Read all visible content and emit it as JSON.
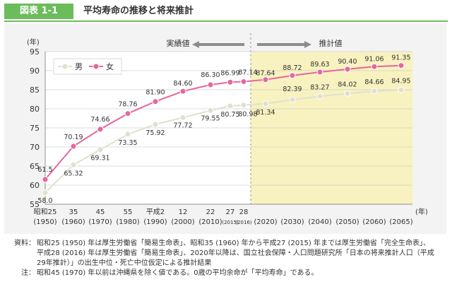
{
  "figure": {
    "badge": "図表 1-1",
    "title": "平均寿命の推移と将来推計"
  },
  "chart_data": {
    "type": "line",
    "y_unit": "(年)",
    "x_unit": "(年)",
    "ylim": [
      55,
      95
    ],
    "yticks": [
      55,
      60,
      65,
      70,
      75,
      80,
      85,
      90,
      95
    ],
    "grid": true,
    "legend_position": "top-left",
    "categories": [
      "昭和25 (1950)",
      "35 (1960)",
      "45 (1970)",
      "55 (1980)",
      "平成2 (1990)",
      "12 (2000)",
      "22 (2010)",
      "27 (2015)",
      "28 (2016)",
      "(2020)",
      "(2030)",
      "(2040)",
      "(2050)",
      "(2060)",
      "(2065)"
    ],
    "x": [
      1950,
      1960,
      1970,
      1980,
      1990,
      2000,
      2010,
      2015,
      2016,
      2020,
      2030,
      2040,
      2050,
      2060,
      2065
    ],
    "tick_labels": [
      {
        "x": 1950,
        "top": "昭和25",
        "bottom": "(1950)"
      },
      {
        "x": 1960,
        "top": "35",
        "bottom": "(1960)"
      },
      {
        "x": 1970,
        "top": "45",
        "bottom": "(1970)"
      },
      {
        "x": 1980,
        "top": "55",
        "bottom": "(1980)"
      },
      {
        "x": 1990,
        "top": "平成2",
        "bottom": "(1990)"
      },
      {
        "x": 2000,
        "top": "12",
        "bottom": "(2000)"
      },
      {
        "x": 2010,
        "top": "22",
        "bottom": "(2010)"
      },
      {
        "x": 2015,
        "top": "27",
        "bottom": "(2015)",
        "small": true
      },
      {
        "x": 2016,
        "top": "28",
        "bottom": "(2016)",
        "small": true
      },
      {
        "x": 2020,
        "top": "",
        "bottom": "(2020)"
      },
      {
        "x": 2030,
        "top": "",
        "bottom": "(2030)"
      },
      {
        "x": 2040,
        "top": "",
        "bottom": "(2040)"
      },
      {
        "x": 2050,
        "top": "",
        "bottom": "(2050)"
      },
      {
        "x": 2060,
        "top": "",
        "bottom": "(2060)"
      },
      {
        "x": 2065,
        "top": "",
        "bottom": "(2065)"
      }
    ],
    "series": [
      {
        "name": "男",
        "color": "#e0e0d0",
        "values": [
          58.0,
          65.32,
          69.31,
          73.35,
          75.92,
          77.72,
          79.55,
          80.75,
          80.98,
          81.34,
          82.39,
          83.27,
          84.02,
          84.66,
          84.95
        ],
        "labels": [
          "58.0",
          "65.32",
          "69.31",
          "73.35",
          "75.92",
          "77.72",
          "79.55",
          "80.75",
          "80.98",
          "81.34",
          "82.39",
          "83.27",
          "84.02",
          "84.66",
          "84.95"
        ]
      },
      {
        "name": "女",
        "color": "#e5679e",
        "values": [
          61.5,
          70.19,
          74.66,
          78.76,
          81.9,
          84.6,
          86.3,
          86.99,
          87.14,
          87.64,
          88.72,
          89.63,
          90.4,
          91.06,
          91.35
        ],
        "labels": [
          "61.5",
          "70.19",
          "74.66",
          "78.76",
          "81.90",
          "84.60",
          "86.30",
          "86.99",
          "87.14",
          "87.64",
          "88.72",
          "89.63",
          "90.40",
          "91.06",
          "91.35"
        ]
      }
    ],
    "projection_shading_color": "#f8f2c0",
    "actual_label": "実績値",
    "projection_label": "推計値"
  },
  "notes": {
    "source_label": "資料：",
    "source_lines": [
      "昭和25 (1950) 年は厚生労働省「簡易生命表」、昭和35 (1960) 年から平成27 (2015) 年までは厚生労働省「完全生命表」、",
      "平成28 (2016) 年は厚生労働省「簡易生命表」、2020年以降は、国立社会保障・人口問題研究所「日本の将来推計人口（平成",
      "29年推計）」の出生中位・死亡中位仮定による推計結果"
    ],
    "note_label": "注：",
    "note_line": "昭和45 (1970) 年以前は沖縄県を除く値である。0歳の平均余命が「平均寿命」である。"
  }
}
